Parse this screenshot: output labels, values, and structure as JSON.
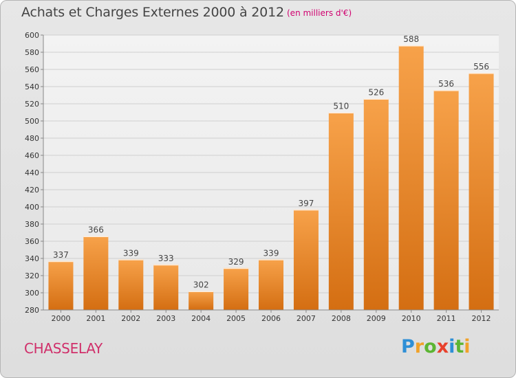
{
  "header": {
    "title": "Achats et Charges Externes 2000 à 2012",
    "subtitle": "(en milliers d'€)"
  },
  "footer": {
    "commune": "CHASSELAY",
    "brand": "Proxiti"
  },
  "colors": {
    "bar_light": "#f7a24a",
    "bar_dark": "#d46e12",
    "title": "#444444",
    "subtitle": "#d0006f",
    "commune": "#d02f6a"
  },
  "chart_data": {
    "type": "bar",
    "title": "Achats et Charges Externes 2000 à 2012",
    "subtitle": "(en milliers d'€)",
    "categories": [
      "2000",
      "2001",
      "2002",
      "2003",
      "2004",
      "2005",
      "2006",
      "2007",
      "2008",
      "2009",
      "2010",
      "2011",
      "2012"
    ],
    "values": [
      337,
      366,
      339,
      333,
      302,
      329,
      339,
      397,
      510,
      526,
      588,
      536,
      556
    ],
    "ylim": [
      280,
      600
    ],
    "ytick_step": 20,
    "grid": "horizontal",
    "data_labels": true,
    "xlabel": "",
    "ylabel": ""
  }
}
